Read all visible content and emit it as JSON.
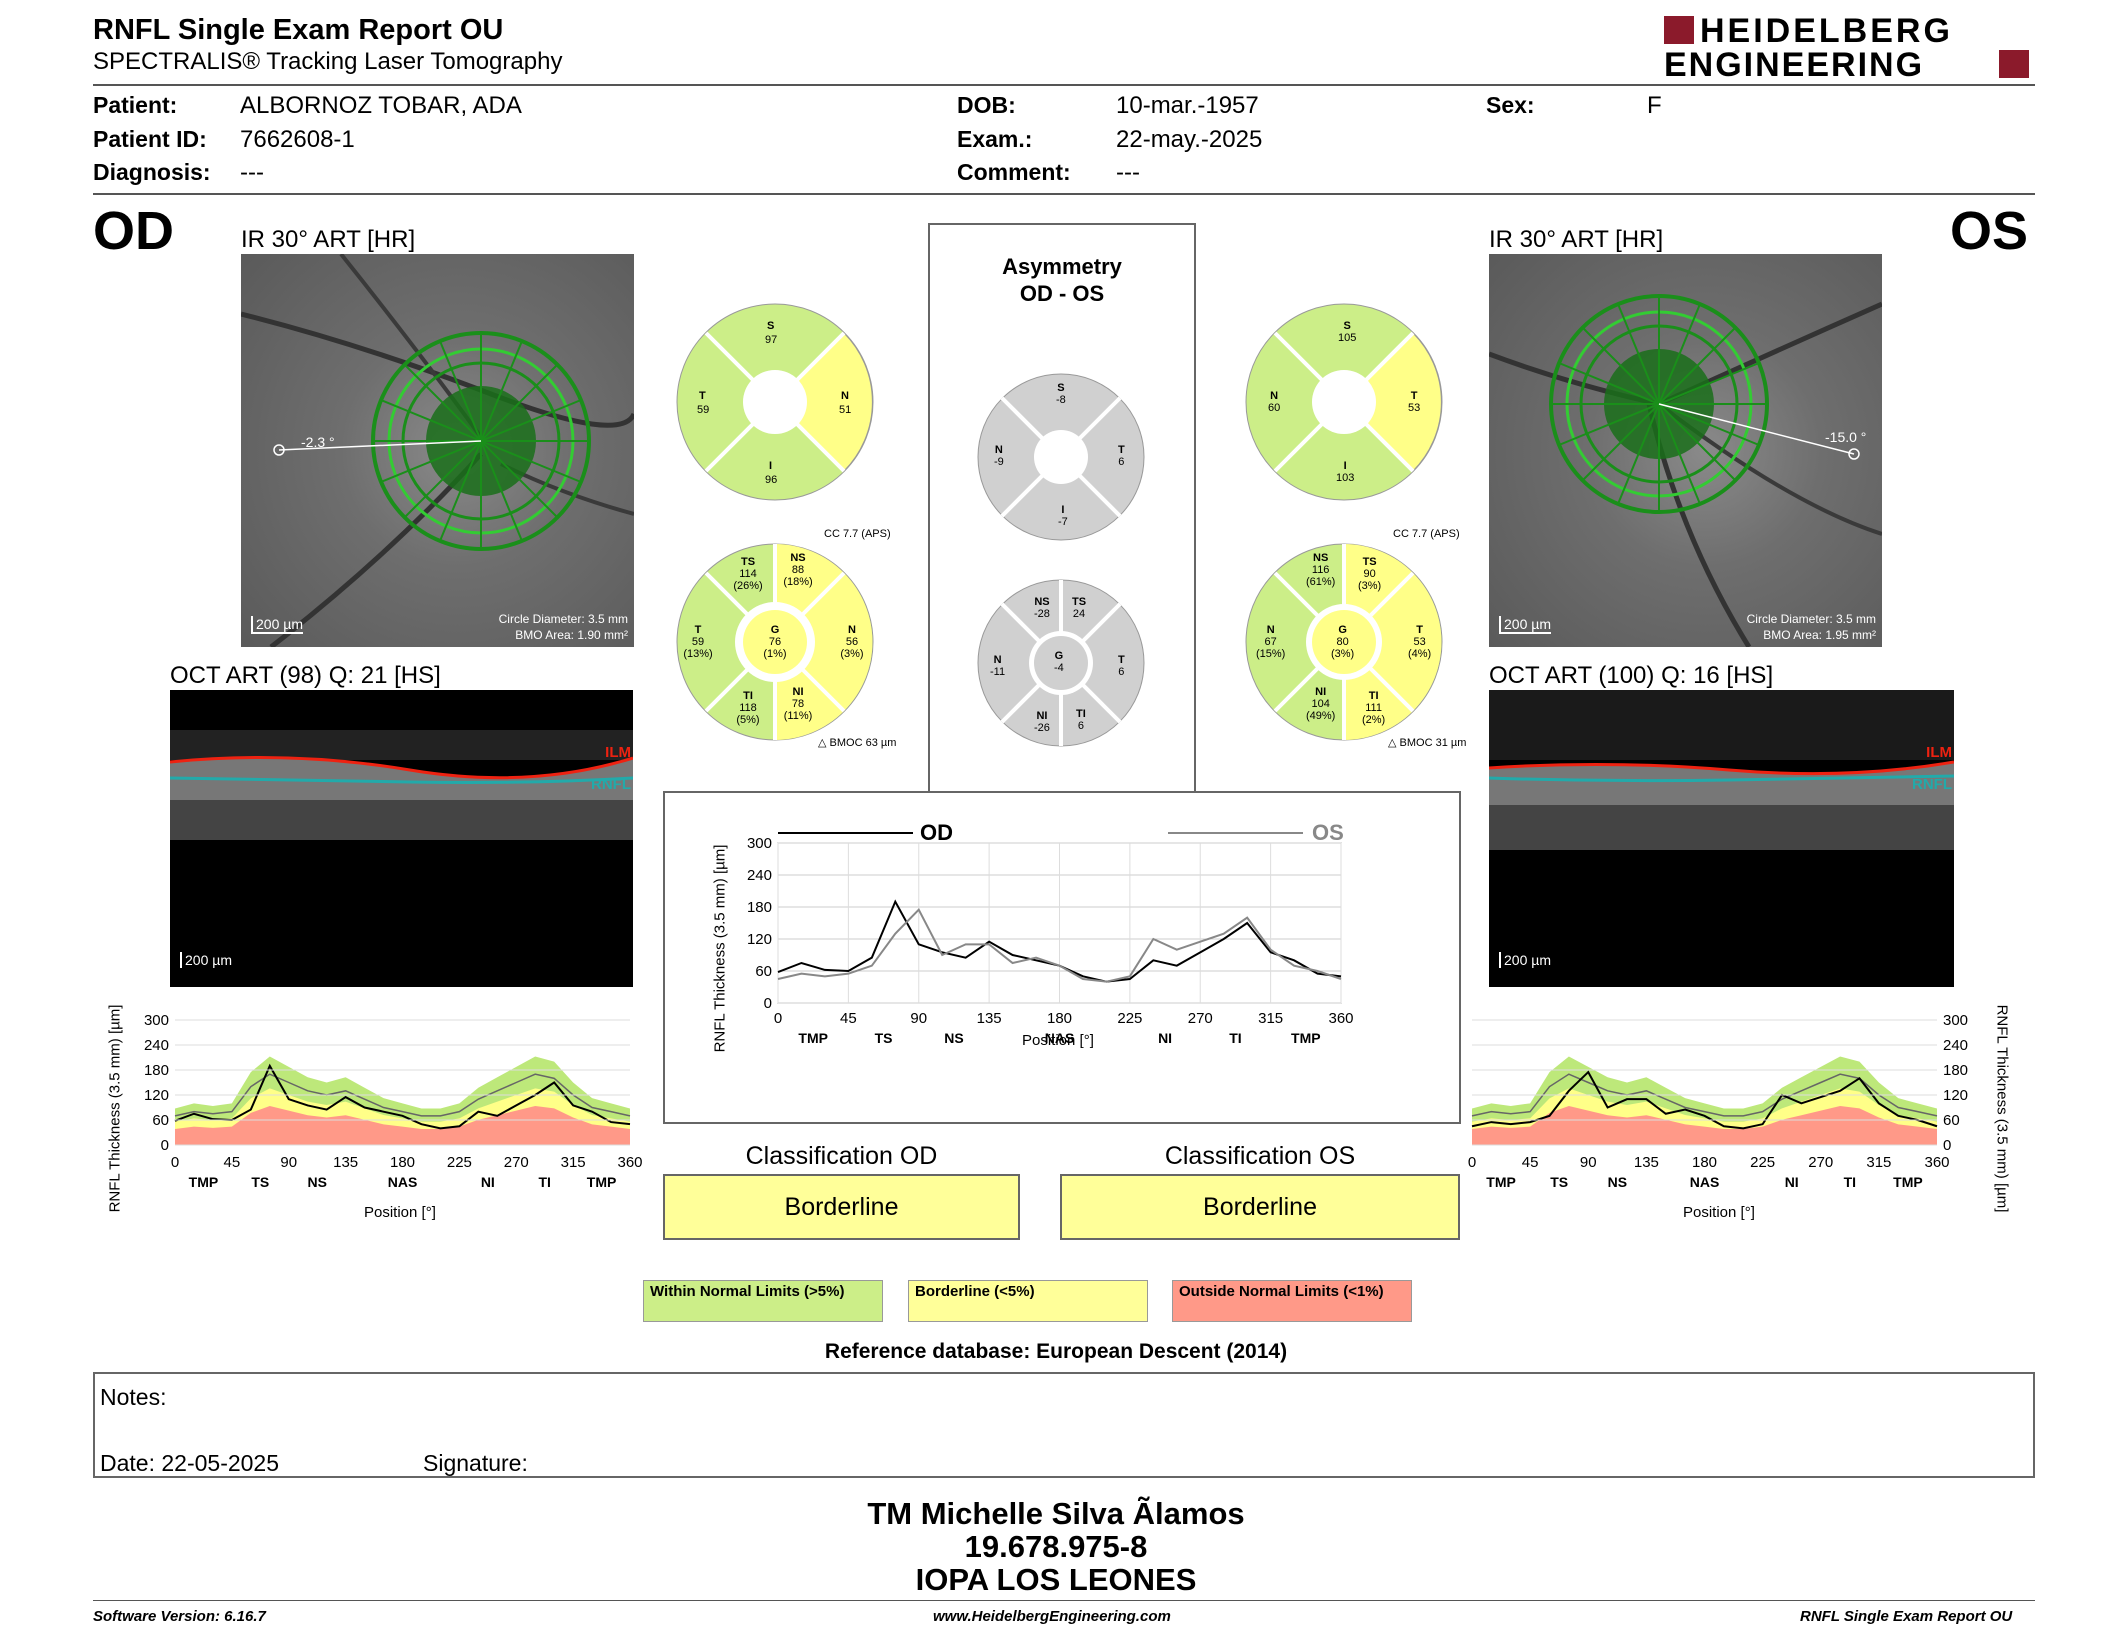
{
  "header": {
    "title": "RNFL Single Exam Report OU",
    "subtitle": "SPECTRALIS® Tracking Laser Tomography",
    "logo_line1": "HEIDELBERG",
    "logo_line2": "ENGINEERING"
  },
  "patient": {
    "patient_label": "Patient:",
    "patient_value": "ALBORNOZ TOBAR, ADA",
    "id_label": "Patient ID:",
    "id_value": "7662608-1",
    "diag_label": "Diagnosis:",
    "diag_value": "---",
    "dob_label": "DOB:",
    "dob_value": "10-mar.-1957",
    "exam_label": "Exam.:",
    "exam_value": "22-may.-2025",
    "comment_label": "Comment:",
    "comment_value": "---",
    "sex_label": "Sex:",
    "sex_value": "F"
  },
  "od": {
    "eye": "OD",
    "ir_title": "IR 30° ART [HR]",
    "angle": "-2.3 °",
    "scale": "200 µm",
    "circle_diameter": "Circle Diameter: 3.5 mm",
    "bmo_area": "BMO Area: 1.90 mm²",
    "oct_title": "OCT ART (98) Q: 21 [HS]",
    "oct_scale": "200 µm",
    "ilm": "ILM",
    "rnfl": "RNFL",
    "sectors4": {
      "S": "97",
      "T": "59",
      "N": "51",
      "I": "96"
    },
    "cc": "CC 7.7 (APS)",
    "sectors6": {
      "TS": "114",
      "TS_p": "(26%)",
      "NS": "88",
      "NS_p": "(18%)",
      "T": "59",
      "T_p": "(13%)",
      "G": "76",
      "G_p": "(1%)",
      "N": "56",
      "N_p": "(3%)",
      "TI": "118",
      "TI_p": "(5%)",
      "NI": "78",
      "NI_p": "(11%)"
    },
    "bmo": "BMOC 63 µm"
  },
  "os": {
    "eye": "OS",
    "ir_title": "IR 30° ART [HR]",
    "angle": "-15.0 °",
    "scale": "200 µm",
    "circle_diameter": "Circle Diameter: 3.5 mm",
    "bmo_area": "BMO Area: 1.95 mm²",
    "oct_title": "OCT ART (100) Q: 16 [HS]",
    "oct_scale": "200 µm",
    "ilm": "ILM",
    "rnfl": "RNFL",
    "sectors4": {
      "S": "105",
      "N": "60",
      "T": "53",
      "I": "103"
    },
    "cc": "CC 7.7 (APS)",
    "sectors6": {
      "NS": "116",
      "NS_p": "(61%)",
      "TS": "90",
      "TS_p": "(3%)",
      "N": "67",
      "N_p": "(15%)",
      "G": "80",
      "G_p": "(3%)",
      "T": "53",
      "T_p": "(4%)",
      "NI": "104",
      "NI_p": "(49%)",
      "TI": "111",
      "TI_p": "(2%)"
    },
    "bmo": "BMOC 31 µm"
  },
  "asym": {
    "title1": "Asymmetry",
    "title2": "OD - OS",
    "s4": {
      "S": "-8",
      "N": "-9",
      "T": "6",
      "I": "-7"
    },
    "s6": {
      "NS": "-28",
      "TS": "24",
      "N": "-11",
      "G": "-4",
      "T": "6",
      "NI": "-26",
      "TI": "6"
    },
    "sector_labels": {
      "S": "S",
      "N": "N",
      "T": "T",
      "I": "I",
      "NS": "NS",
      "TS": "TS",
      "G": "G",
      "NI": "NI",
      "TI": "TI"
    }
  },
  "compare": {
    "od_label": "OD",
    "os_label": "OS",
    "ylabel": "RNFL Thickness (3.5 mm) [µm]",
    "xlabel": "Position [°]"
  },
  "ticks_y": [
    "300",
    "240",
    "180",
    "120",
    "60",
    "0"
  ],
  "ticks_x": [
    "0",
    "45",
    "90",
    "135",
    "180",
    "225",
    "270",
    "315",
    "360"
  ],
  "zones": [
    "TMP",
    "TS",
    "NS",
    "NAS",
    "NI",
    "TI",
    "TMP"
  ],
  "graph_od": {
    "ylabel": "RNFL Thickness (3.5 mm) [µm]",
    "xlabel": "Position [°]"
  },
  "graph_os": {
    "ylabel": "RNFL Thickness (3.5 mm) [µm]",
    "xlabel": "Position [°]"
  },
  "classification": {
    "od_title": "Classification OD",
    "od_value": "Borderline",
    "os_title": "Classification OS",
    "os_value": "Borderline"
  },
  "legend": {
    "within": "Within Normal Limits (>5%)",
    "borderline": "Borderline (<5%)",
    "outside": "Outside Normal Limits (<1%)",
    "reference": "Reference database: European Descent (2014)"
  },
  "notes": {
    "notes_label": "Notes:",
    "date_label": "Date: 22-05-2025",
    "signature_label": "Signature:"
  },
  "stamp": {
    "line1": "TM Michelle Silva Ãlamos",
    "line2": "19.678.975-8",
    "line3": "IOPA LOS LEONES"
  },
  "footer": {
    "software": "Software Version: 6.16.7",
    "website": "www.HeidelbergEngineering.com",
    "report": "RNFL Single Exam Report OU"
  },
  "colors": {
    "green": "#ccee88",
    "yellow": "#ffff88",
    "red": "#ff9988",
    "gray": "#d0d0d0"
  },
  "chart_data": [
    {
      "type": "line",
      "title": "OD",
      "x": [
        0,
        15,
        30,
        45,
        60,
        75,
        90,
        105,
        120,
        135,
        150,
        165,
        180,
        195,
        210,
        225,
        240,
        255,
        270,
        285,
        300,
        315,
        330,
        345,
        360
      ],
      "series": [
        {
          "name": "OD",
          "values": [
            58,
            75,
            62,
            60,
            85,
            190,
            110,
            95,
            85,
            115,
            90,
            80,
            70,
            50,
            40,
            45,
            80,
            70,
            95,
            120,
            150,
            95,
            80,
            55,
            50
          ]
        },
        {
          "name": "OS",
          "values": [
            45,
            55,
            50,
            55,
            70,
            130,
            175,
            90,
            110,
            110,
            75,
            85,
            70,
            45,
            40,
            50,
            120,
            100,
            115,
            130,
            160,
            100,
            70,
            60,
            45
          ]
        }
      ],
      "xlim": [
        0,
        360
      ],
      "ylim": [
        0,
        300
      ]
    }
  ]
}
